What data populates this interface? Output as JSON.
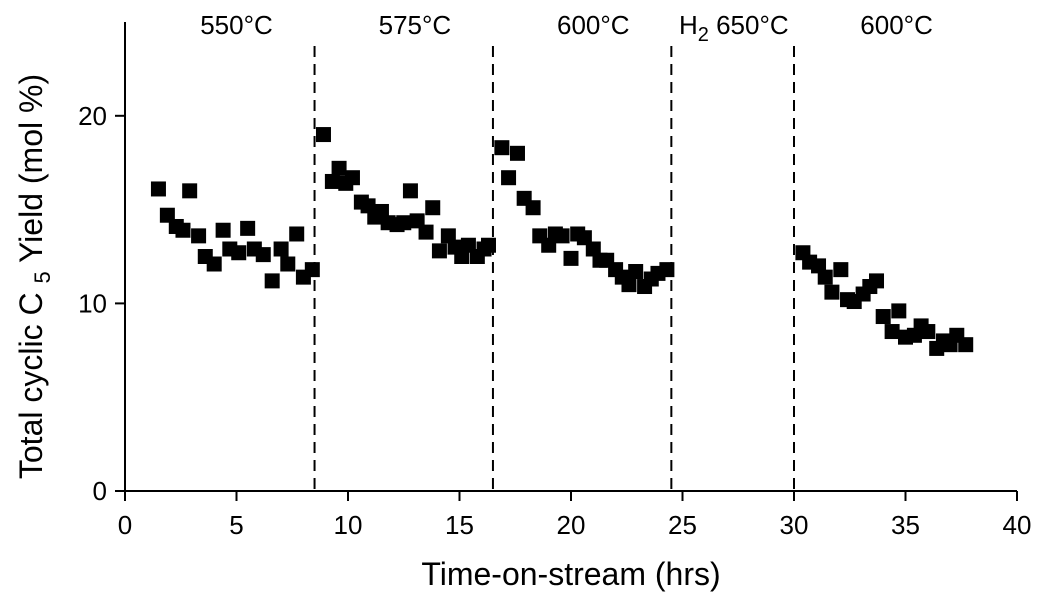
{
  "chart_data": {
    "type": "scatter",
    "xlabel": "Time-on-stream (hrs)",
    "ylabel": "Total cyclic C5 Yield (mol %)",
    "ylabel_parts": {
      "pre": "Total cyclic C",
      "sub": "5",
      "post": " Yield (mol %)"
    },
    "xlim": [
      0,
      40
    ],
    "ylim": [
      0,
      25
    ],
    "xticks": [
      "0",
      "5",
      "10",
      "15",
      "20",
      "25",
      "30",
      "35",
      "40"
    ],
    "yticks": [
      "0",
      "10",
      "20"
    ],
    "grid": false,
    "marker_color": "#000000",
    "phase_dividers": [
      8.5,
      16.5,
      24.5,
      30
    ],
    "phase_labels": [
      {
        "label": "550°C",
        "x": 5
      },
      {
        "label": "575°C",
        "x": 13
      },
      {
        "label": "600°C",
        "x": 21
      },
      {
        "label_pre": "H",
        "label_sub": "2",
        "label_post": " 650°C",
        "x": 27.3
      },
      {
        "label": "600°C",
        "x": 34.6
      }
    ],
    "points": [
      [
        1.5,
        16.1
      ],
      [
        1.9,
        14.7
      ],
      [
        2.3,
        14.1
      ],
      [
        2.6,
        13.9
      ],
      [
        2.9,
        16.0
      ],
      [
        3.3,
        13.6
      ],
      [
        3.6,
        12.5
      ],
      [
        4.0,
        12.1
      ],
      [
        4.4,
        13.9
      ],
      [
        4.7,
        12.9
      ],
      [
        5.1,
        12.7
      ],
      [
        5.5,
        14.0
      ],
      [
        5.8,
        12.9
      ],
      [
        6.2,
        12.6
      ],
      [
        6.6,
        11.2
      ],
      [
        7.0,
        12.9
      ],
      [
        7.3,
        12.1
      ],
      [
        7.7,
        13.7
      ],
      [
        8.0,
        11.4
      ],
      [
        8.4,
        11.8
      ],
      [
        8.9,
        19.0
      ],
      [
        9.3,
        16.5
      ],
      [
        9.6,
        17.2
      ],
      [
        9.9,
        16.4
      ],
      [
        10.2,
        16.7
      ],
      [
        10.6,
        15.4
      ],
      [
        10.9,
        15.2
      ],
      [
        11.2,
        14.6
      ],
      [
        11.5,
        14.9
      ],
      [
        11.8,
        14.3
      ],
      [
        12.2,
        14.2
      ],
      [
        12.5,
        14.3
      ],
      [
        12.8,
        16.0
      ],
      [
        13.1,
        14.4
      ],
      [
        13.5,
        13.8
      ],
      [
        13.8,
        15.1
      ],
      [
        14.1,
        12.8
      ],
      [
        14.5,
        13.6
      ],
      [
        14.8,
        13.0
      ],
      [
        15.1,
        12.5
      ],
      [
        15.4,
        13.1
      ],
      [
        15.8,
        12.5
      ],
      [
        16.1,
        12.9
      ],
      [
        16.3,
        13.1
      ],
      [
        16.9,
        18.3
      ],
      [
        17.2,
        16.7
      ],
      [
        17.6,
        18.0
      ],
      [
        17.9,
        15.6
      ],
      [
        18.3,
        15.1
      ],
      [
        18.6,
        13.6
      ],
      [
        19.0,
        13.1
      ],
      [
        19.3,
        13.7
      ],
      [
        19.6,
        13.6
      ],
      [
        20.0,
        12.4
      ],
      [
        20.3,
        13.7
      ],
      [
        20.6,
        13.5
      ],
      [
        21.0,
        12.9
      ],
      [
        21.3,
        12.3
      ],
      [
        21.6,
        12.3
      ],
      [
        22.0,
        11.8
      ],
      [
        22.3,
        11.4
      ],
      [
        22.6,
        11.0
      ],
      [
        22.9,
        11.7
      ],
      [
        23.3,
        10.9
      ],
      [
        23.6,
        11.3
      ],
      [
        23.9,
        11.6
      ],
      [
        24.3,
        11.8
      ],
      [
        30.4,
        12.7
      ],
      [
        30.7,
        12.2
      ],
      [
        31.1,
        12.0
      ],
      [
        31.4,
        11.4
      ],
      [
        31.7,
        10.6
      ],
      [
        32.1,
        11.8
      ],
      [
        32.4,
        10.2
      ],
      [
        32.7,
        10.1
      ],
      [
        33.1,
        10.5
      ],
      [
        33.4,
        10.9
      ],
      [
        33.7,
        11.2
      ],
      [
        34.0,
        9.3
      ],
      [
        34.4,
        8.5
      ],
      [
        34.7,
        9.6
      ],
      [
        35.0,
        8.2
      ],
      [
        35.4,
        8.3
      ],
      [
        35.7,
        8.8
      ],
      [
        36.0,
        8.5
      ],
      [
        36.4,
        7.6
      ],
      [
        36.7,
        8.0
      ],
      [
        37.0,
        7.8
      ],
      [
        37.3,
        8.3
      ],
      [
        37.7,
        7.8
      ]
    ]
  }
}
